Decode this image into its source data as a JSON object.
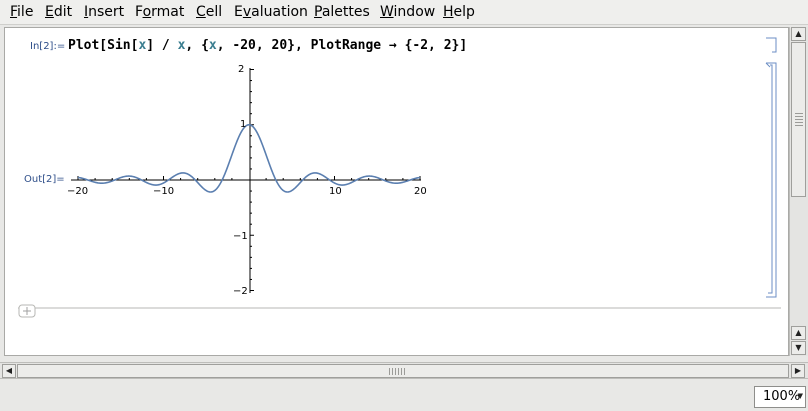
{
  "menu": [
    {
      "label": "File",
      "accel": "F",
      "rest": "ile"
    },
    {
      "label": "Edit",
      "accel": "E",
      "rest": "dit"
    },
    {
      "label": "Insert",
      "accel": "I",
      "rest": "nsert"
    },
    {
      "label": "Format",
      "accel": "",
      "rest": "Format",
      "pre": "",
      "accel_mid": "o",
      "pre_mid": "F",
      "post_mid": "rmat"
    },
    {
      "label": "Cell",
      "accel": "C",
      "rest": "ell"
    },
    {
      "label": "Evaluation",
      "accel": "v",
      "pre": "E",
      "rest": "aluation"
    },
    {
      "label": "Palettes",
      "accel": "P",
      "rest": "alettes"
    },
    {
      "label": "Window",
      "accel": "W",
      "rest": "indow"
    },
    {
      "label": "Help",
      "accel": "H",
      "rest": "elp"
    }
  ],
  "notebook": {
    "input_label": "In[2]:=",
    "output_label": "Out[2]=",
    "input_parts": [
      "Plot[Sin[",
      "x",
      "] / ",
      "x",
      ", {",
      "x",
      ", -20, 20}, PlotRange → {-2, 2}]"
    ],
    "plot": {
      "x_ticks": [
        "−20",
        "−10",
        "10",
        "20"
      ],
      "y_ticks": [
        "2",
        "1",
        "−1",
        "−2"
      ]
    }
  },
  "status": {
    "zoom": "100%"
  },
  "chart_data": {
    "type": "line",
    "function": "Sin[x]/x",
    "xlim": [
      -20,
      20
    ],
    "ylim": [
      -2,
      2
    ],
    "x_ticks": [
      -20,
      -10,
      10,
      20
    ],
    "y_ticks": [
      -2,
      -1,
      1,
      2
    ],
    "line_color": "#5b7fb0"
  }
}
